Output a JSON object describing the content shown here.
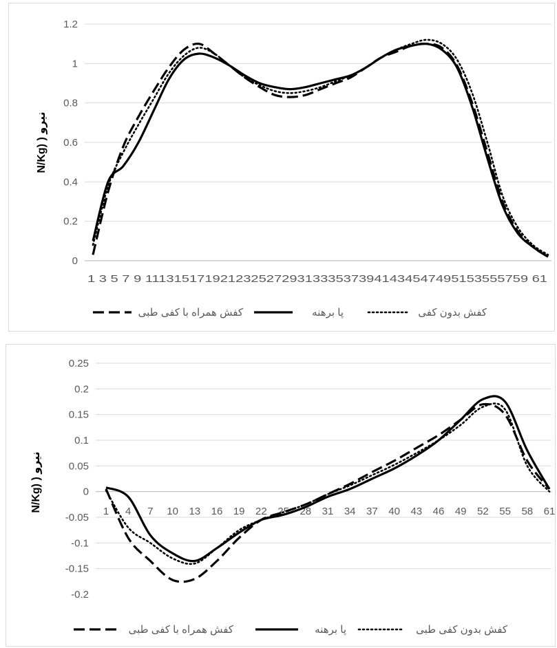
{
  "chart_data": [
    {
      "type": "line",
      "ylabel": "N/Kg) ) نیرو",
      "ylim": [
        0,
        1.2
      ],
      "yticks": [
        "0",
        "0.2",
        "0.4",
        "0.6",
        "0.8",
        "1",
        "1.2"
      ],
      "xtick_text": "1 3 5 7 9 11131517192123252729313335373941434547495153555759 61",
      "x": [
        1,
        3,
        5,
        7,
        9,
        11,
        13,
        15,
        17,
        19,
        21,
        23,
        25,
        27,
        29,
        31,
        33,
        35,
        37,
        39,
        41,
        43,
        45,
        47,
        49,
        51,
        53,
        55,
        57,
        59,
        61
      ],
      "grid": true,
      "legend_position": "bottom",
      "series": [
        {
          "name": "کفش همراه با کفی طبی",
          "style": "dashed",
          "values": [
            0.03,
            0.35,
            0.58,
            0.73,
            0.86,
            0.98,
            1.07,
            1.1,
            1.05,
            0.99,
            0.93,
            0.88,
            0.84,
            0.83,
            0.84,
            0.87,
            0.9,
            0.93,
            0.98,
            1.03,
            1.06,
            1.09,
            1.1,
            1.08,
            0.99,
            0.8,
            0.55,
            0.3,
            0.15,
            0.07,
            0.02
          ]
        },
        {
          "name": "پا برهنه",
          "style": "solid",
          "values": [
            0.1,
            0.4,
            0.48,
            0.6,
            0.76,
            0.92,
            1.02,
            1.05,
            1.03,
            0.99,
            0.94,
            0.9,
            0.88,
            0.87,
            0.88,
            0.9,
            0.92,
            0.94,
            0.98,
            1.03,
            1.07,
            1.09,
            1.1,
            1.07,
            0.98,
            0.78,
            0.52,
            0.28,
            0.14,
            0.07,
            0.02
          ]
        },
        {
          "name": "کفش بدون کفی",
          "style": "dotted",
          "values": [
            0.08,
            0.38,
            0.55,
            0.69,
            0.82,
            0.95,
            1.04,
            1.08,
            1.05,
            0.99,
            0.93,
            0.89,
            0.86,
            0.85,
            0.86,
            0.88,
            0.91,
            0.94,
            0.98,
            1.03,
            1.07,
            1.1,
            1.12,
            1.1,
            1.02,
            0.85,
            0.6,
            0.33,
            0.17,
            0.08,
            0.03
          ]
        }
      ]
    },
    {
      "type": "line",
      "ylabel": "N/Kg) ) نیرو",
      "ylim": [
        -0.2,
        0.25
      ],
      "yticks": [
        "-0.2",
        "-0.15",
        "-0.1",
        "-0.05",
        "0",
        "0.05",
        "0.1",
        "0.15",
        "0.2",
        "0.25"
      ],
      "xticks": [
        "1",
        "4",
        "7",
        "10",
        "13",
        "16",
        "19",
        "22",
        "25",
        "28",
        "31",
        "34",
        "37",
        "40",
        "43",
        "46",
        "49",
        "52",
        "55",
        "58",
        "61"
      ],
      "x": [
        1,
        4,
        7,
        10,
        13,
        16,
        19,
        22,
        25,
        28,
        31,
        34,
        37,
        40,
        43,
        46,
        49,
        52,
        55,
        58,
        61
      ],
      "grid": true,
      "legend_position": "bottom",
      "series": [
        {
          "name": "کفش همراه با کفی طبی",
          "style": "dashed",
          "values": [
            0.005,
            -0.09,
            -0.135,
            -0.172,
            -0.17,
            -0.135,
            -0.09,
            -0.055,
            -0.04,
            -0.025,
            -0.005,
            0.015,
            0.038,
            0.06,
            0.085,
            0.11,
            0.14,
            0.17,
            0.15,
            0.06,
            0.005
          ]
        },
        {
          "name": "پا برهنه",
          "style": "solid",
          "values": [
            0.008,
            -0.01,
            -0.085,
            -0.12,
            -0.135,
            -0.11,
            -0.08,
            -0.055,
            -0.045,
            -0.03,
            -0.01,
            0.005,
            0.025,
            0.045,
            0.07,
            0.1,
            0.14,
            0.18,
            0.175,
            0.08,
            0.005
          ]
        },
        {
          "name": "کفش بدون کفی طبی",
          "style": "dotted",
          "values": [
            0.002,
            -0.07,
            -0.1,
            -0.13,
            -0.14,
            -0.11,
            -0.075,
            -0.055,
            -0.04,
            -0.025,
            -0.005,
            0.012,
            0.032,
            0.052,
            0.075,
            0.1,
            0.13,
            0.165,
            0.16,
            0.05,
            0.0
          ]
        }
      ]
    }
  ]
}
